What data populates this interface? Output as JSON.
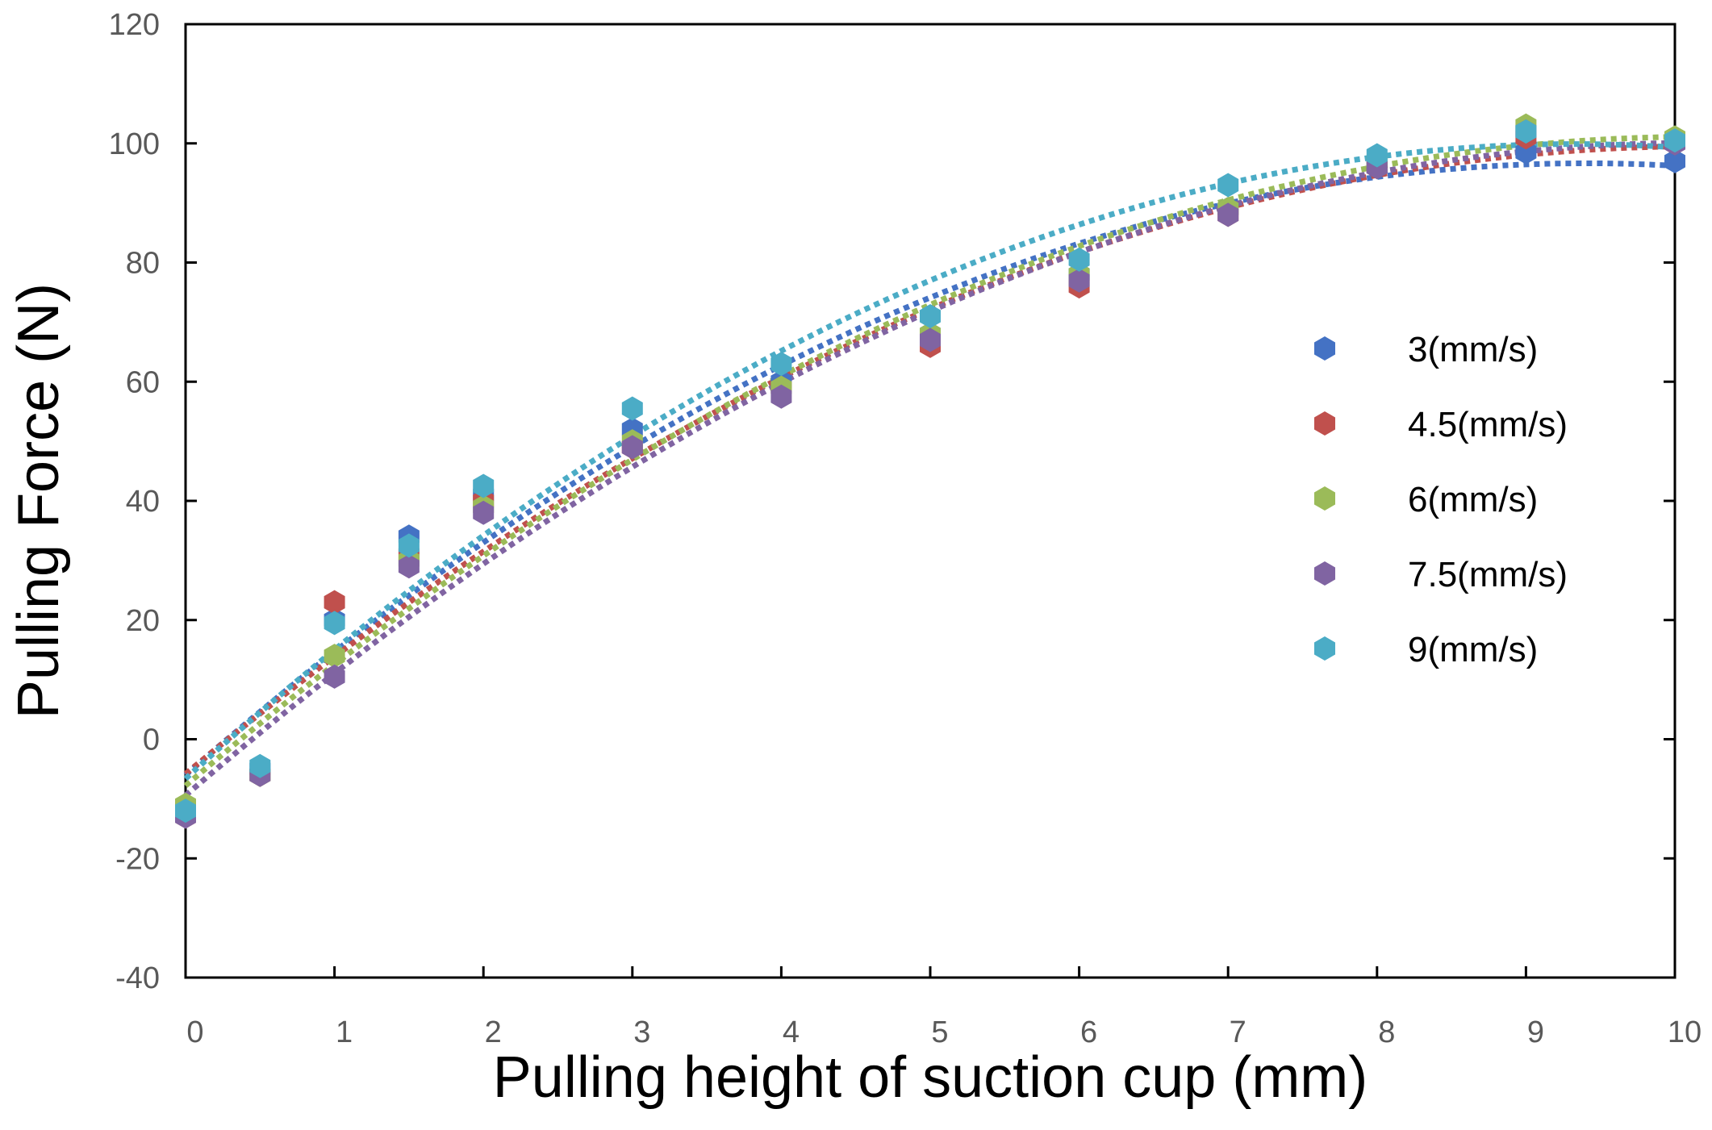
{
  "chart_data": {
    "type": "scatter",
    "title": "",
    "xlabel": "Pulling height of suction cup (mm)",
    "ylabel": "Pulling Force (N)",
    "xlim": [
      0,
      10
    ],
    "ylim": [
      -40,
      120
    ],
    "x_ticks": [
      "0",
      "1",
      "2",
      "3",
      "4",
      "5",
      "6",
      "7",
      "8",
      "9",
      "10"
    ],
    "y_ticks": [
      "120",
      "100",
      "80",
      "60",
      "40",
      "20",
      "0",
      "-20",
      "-40"
    ],
    "grid": false,
    "legend_position": "right",
    "trendline": "polynomial (dotted)",
    "series": [
      {
        "name": "3(mm/s)",
        "color": "#4472C4",
        "x": [
          0,
          0.5,
          1,
          1.5,
          2,
          3,
          4,
          5,
          6,
          7,
          8,
          9,
          10
        ],
        "y": [
          -12,
          -5,
          20,
          34,
          41,
          52,
          60,
          68,
          78,
          89,
          96,
          98.5,
          97
        ]
      },
      {
        "name": "4.5(mm/s)",
        "color": "#C0504D",
        "x": [
          0,
          0.5,
          1,
          1.5,
          2,
          3,
          4,
          5,
          6,
          7,
          8,
          9,
          10
        ],
        "y": [
          -13,
          -6,
          23,
          31,
          40,
          49,
          59,
          66,
          76,
          88,
          96,
          101,
          100
        ]
      },
      {
        "name": "6(mm/s)",
        "color": "#9BBB59",
        "x": [
          0,
          0.5,
          1,
          1.5,
          2,
          3,
          4,
          5,
          6,
          7,
          8,
          9,
          10
        ],
        "y": [
          -11,
          -6,
          14,
          30,
          39,
          50,
          59,
          68,
          78,
          89,
          97,
          103,
          101
        ]
      },
      {
        "name": "7.5(mm/s)",
        "color": "#8064A2",
        "x": [
          0,
          0.5,
          1,
          1.5,
          2,
          3,
          4,
          5,
          6,
          7,
          8,
          9,
          10
        ],
        "y": [
          -13,
          -6,
          10.5,
          29,
          38,
          49,
          57.5,
          67,
          77,
          88,
          96,
          102,
          100
        ]
      },
      {
        "name": "9(mm/s)",
        "color": "#4BACC6",
        "x": [
          0,
          0.5,
          1,
          1.5,
          2,
          3,
          4,
          5,
          6,
          7,
          8,
          9,
          10
        ],
        "y": [
          -12,
          -4.5,
          19.5,
          32.5,
          42.5,
          55.5,
          63,
          71,
          80.5,
          93,
          98,
          102,
          100.5
        ]
      }
    ]
  }
}
